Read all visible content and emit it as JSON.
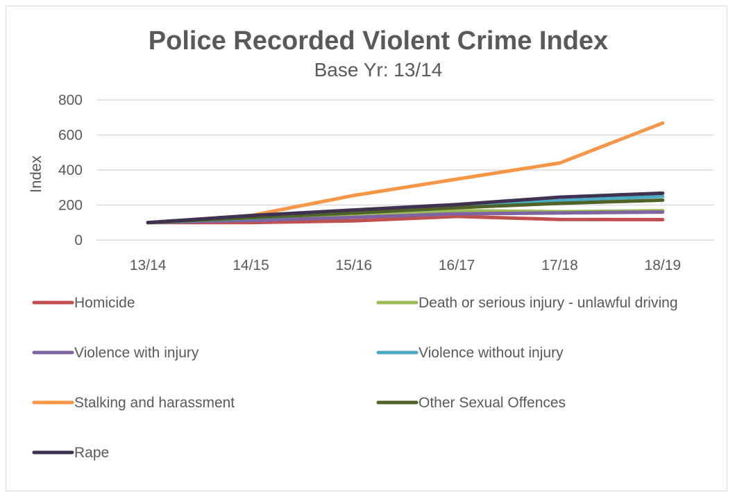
{
  "chart_data": {
    "type": "line",
    "title": "Police Recorded Violent Crime Index",
    "subtitle": "Base Yr: 13/14",
    "xlabel": "",
    "ylabel": "Index",
    "ylim": [
      0,
      800
    ],
    "yticks": [
      0,
      200,
      400,
      600,
      800
    ],
    "grid": true,
    "legend_position": "bottom",
    "categories": [
      "13/14",
      "14/15",
      "15/16",
      "16/17",
      "17/18",
      "18/19"
    ],
    "series": [
      {
        "name": "Homicide",
        "color": "#c0504d",
        "values": [
          100,
          100,
          110,
          135,
          118,
          117
        ]
      },
      {
        "name": "Death or serious injury - unlawful driving",
        "color": "#9bbb59",
        "values": [
          100,
          118,
          150,
          168,
          162,
          168
        ]
      },
      {
        "name": "Violence with injury",
        "color": "#8064a2",
        "values": [
          100,
          112,
          130,
          150,
          155,
          160
        ]
      },
      {
        "name": "Violence without injury",
        "color": "#4bacc6",
        "values": [
          100,
          125,
          158,
          188,
          225,
          250
        ]
      },
      {
        "name": "Stalking and harassment",
        "color": "#f79646",
        "values": [
          100,
          140,
          255,
          348,
          440,
          668
        ]
      },
      {
        "name": "Other Sexual Offences",
        "color": "#4f6228",
        "values": [
          100,
          128,
          155,
          185,
          210,
          228
        ]
      },
      {
        "name": "Rape",
        "color": "#3f3151",
        "values": [
          100,
          140,
          172,
          203,
          245,
          268
        ]
      }
    ]
  }
}
